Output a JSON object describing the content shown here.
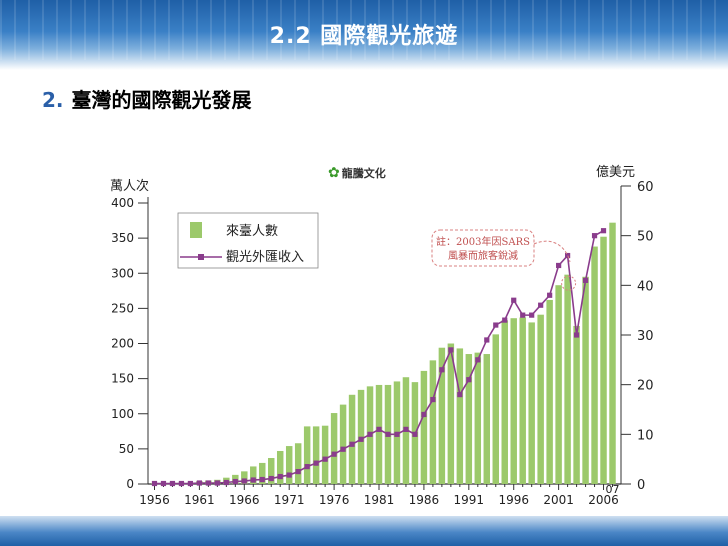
{
  "slide": {
    "title": "2.2 國際觀光旅遊",
    "subtitle_num": "2.",
    "subtitle": "臺灣的國際觀光發展"
  },
  "publisher_logo": "龍騰文化",
  "chart_data": {
    "type": "bar",
    "x": [
      1956,
      1957,
      1958,
      1959,
      1960,
      1961,
      1962,
      1963,
      1964,
      1965,
      1966,
      1967,
      1968,
      1969,
      1970,
      1971,
      1972,
      1973,
      1974,
      1975,
      1976,
      1977,
      1978,
      1979,
      1980,
      1981,
      1982,
      1983,
      1984,
      1985,
      1986,
      1987,
      1988,
      1989,
      1990,
      1991,
      1992,
      1993,
      1994,
      1995,
      1996,
      1997,
      1998,
      1999,
      2000,
      2001,
      2002,
      2003,
      2004,
      2005,
      2006,
      2007
    ],
    "x_tick_labels": [
      "1956",
      "1961",
      "1966",
      "1971",
      "1976",
      "1981",
      "1986",
      "1991",
      "1996",
      "2001",
      "2006"
    ],
    "x_end_label": "07",
    "ylabel_left": "萬人次",
    "ylabel_right": "億美元",
    "ylim_left": [
      0,
      400
    ],
    "ylim_right": [
      0,
      60
    ],
    "y_ticks_left": [
      0,
      50,
      100,
      150,
      200,
      250,
      300,
      350,
      400
    ],
    "y_ticks_right": [
      0,
      10,
      20,
      30,
      40,
      50,
      60
    ],
    "series": [
      {
        "name": "來臺人數",
        "type": "bar",
        "axis": "left",
        "color": "#9cc96b",
        "values": [
          1,
          1,
          2,
          2,
          2,
          4,
          5,
          6,
          9,
          13,
          18,
          25,
          30,
          37,
          47,
          54,
          58,
          82,
          82,
          83,
          101,
          113,
          127,
          134,
          139,
          141,
          141,
          146,
          152,
          145,
          161,
          176,
          194,
          200,
          193,
          185,
          187,
          185,
          213,
          233,
          236,
          237,
          230,
          241,
          262,
          283,
          298,
          225,
          295,
          338,
          352,
          372
        ]
      },
      {
        "name": "觀光外匯收入",
        "type": "line",
        "axis": "right",
        "color": "#8a3c8c",
        "marker_color": "#8a3c8c",
        "values": [
          0.1,
          0.1,
          0.1,
          0.1,
          0.1,
          0.2,
          0.2,
          0.2,
          0.3,
          0.5,
          0.6,
          0.8,
          0.9,
          1.1,
          1.5,
          1.8,
          2.5,
          3.5,
          4.2,
          5,
          6,
          7,
          8,
          9,
          10,
          11,
          10,
          10,
          11,
          10,
          14,
          17,
          23,
          27,
          18,
          21,
          25,
          29,
          32,
          33,
          37,
          34,
          34,
          36,
          38,
          44,
          46,
          30,
          41,
          50,
          51,
          null
        ],
        "annotation": {
          "text_line1": "註：2003年因SARS",
          "text_line2": "風暴而旅客銳減",
          "year": 2003
        }
      }
    ],
    "legend_placement": "top-left",
    "grid": false
  }
}
